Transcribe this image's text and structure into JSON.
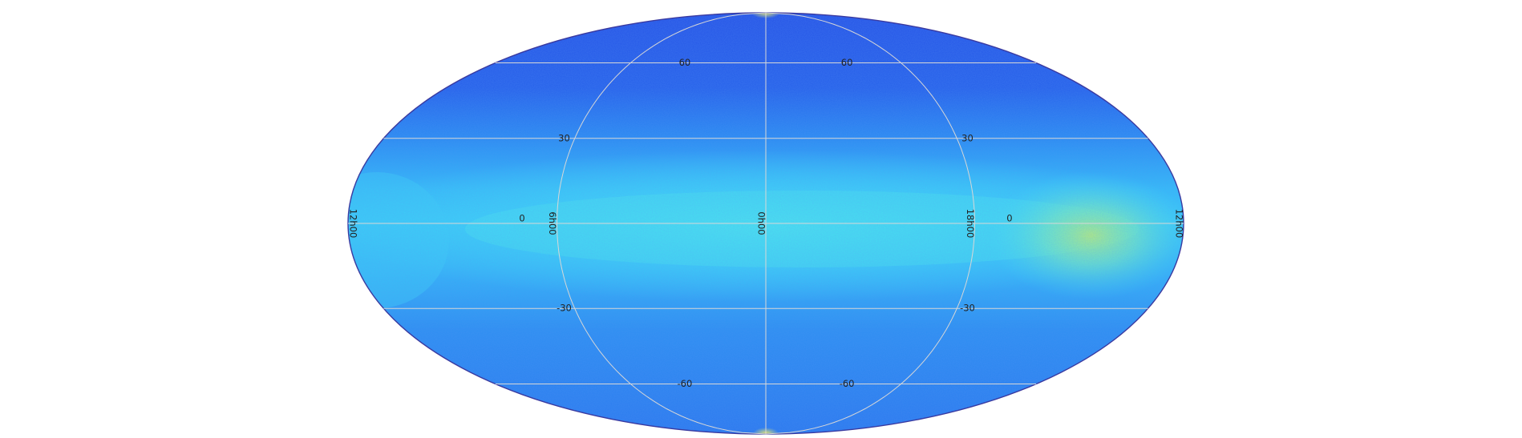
{
  "map": {
    "projection": "mollweide",
    "colormap": [
      "#1f3fe0",
      "#2a78f0",
      "#33b4f8",
      "#3fe0f5",
      "#8cf0a8",
      "#e8f060"
    ],
    "background": "#ffffff",
    "graticule_color": "#d7d7d7",
    "latitude_labels": [
      {
        "text": "60",
        "lat": 60
      },
      {
        "text": "30",
        "lat": 30
      },
      {
        "text": "0",
        "lat": 0
      },
      {
        "text": "-30",
        "lat": -30
      },
      {
        "text": "-60",
        "lat": -60
      }
    ],
    "longitude_labels": [
      {
        "text": "12h00",
        "side": "left"
      },
      {
        "text": "6h00",
        "lon": -90
      },
      {
        "text": "0h00",
        "lon": 0
      },
      {
        "text": "18h00",
        "lon": 90
      },
      {
        "text": "12h00",
        "side": "right"
      }
    ]
  }
}
